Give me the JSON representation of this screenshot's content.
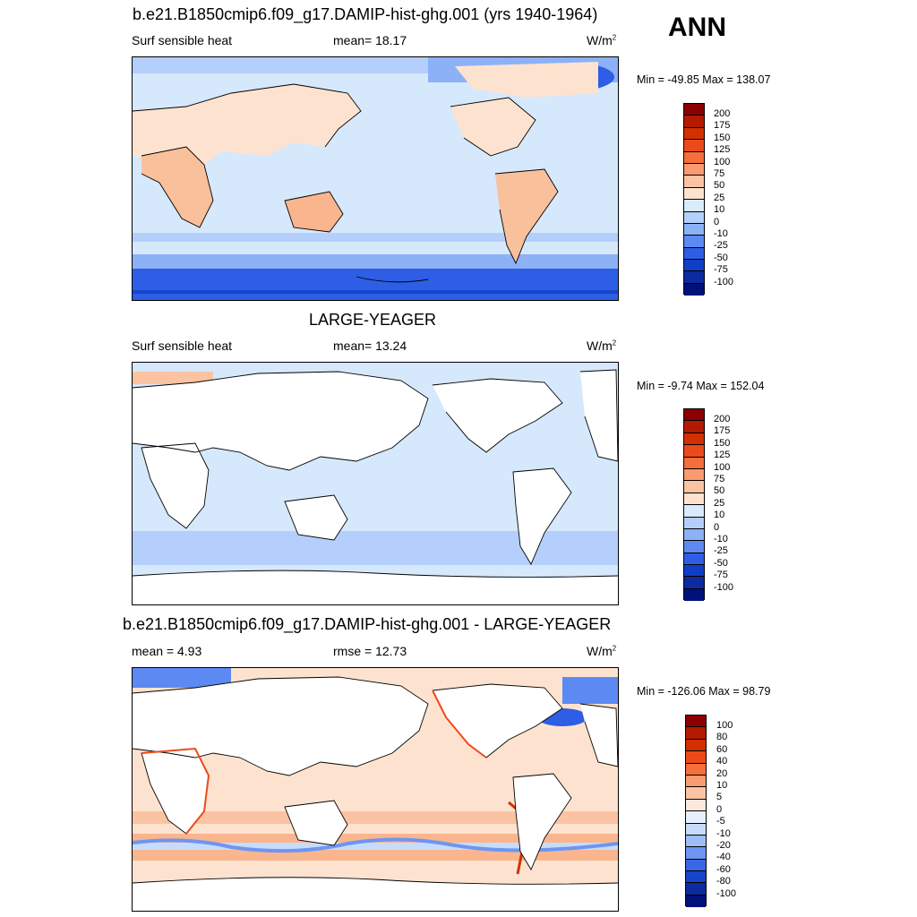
{
  "season": "ANN",
  "panel1": {
    "title": "b.e21.B1850cmip6.f09_g17.DAMIP-hist-ghg.001 (yrs 1940-1964)",
    "variable": "Surf sensible heat",
    "stat": "mean=  18.17",
    "units": "W/m",
    "units_exp": "2",
    "minmax": "Min = -49.85 Max = 138.07",
    "colorbar": {
      "labels": [
        "200",
        "175",
        "150",
        "125",
        "100",
        "75",
        "50",
        "25",
        "10",
        "0",
        "-10",
        "-25",
        "-50",
        "-75",
        "-100"
      ],
      "colors": [
        "#8b0000",
        "#b31a00",
        "#d33000",
        "#ec4a1a",
        "#f56e3c",
        "#f99a70",
        "#fcc3a2",
        "#fde3cf",
        "#d9ebfd",
        "#b4cffb",
        "#8cb1f7",
        "#5d8af2",
        "#2e5ee5",
        "#113ec7",
        "#0d2aa0",
        "#00117a"
      ]
    }
  },
  "panel2": {
    "title": "LARGE-YEAGER",
    "variable": "Surf sensible heat",
    "stat": "mean=  13.24",
    "units": "W/m",
    "units_exp": "2",
    "minmax": "Min =  -9.74 Max = 152.04",
    "colorbar": {
      "labels": [
        "200",
        "175",
        "150",
        "125",
        "100",
        "75",
        "50",
        "25",
        "10",
        "0",
        "-10",
        "-25",
        "-50",
        "-75",
        "-100"
      ],
      "colors": [
        "#8b0000",
        "#b31a00",
        "#d33000",
        "#ec4a1a",
        "#f56e3c",
        "#f99a70",
        "#fcc3a2",
        "#fde3cf",
        "#d9ebfd",
        "#b4cffb",
        "#8cb1f7",
        "#5d8af2",
        "#2e5ee5",
        "#113ec7",
        "#0d2aa0",
        "#00117a"
      ]
    }
  },
  "panel3": {
    "title": "b.e21.B1850cmip6.f09_g17.DAMIP-hist-ghg.001 - LARGE-YEAGER",
    "stat_mean": "mean =   4.93",
    "stat_rmse": "rmse =  12.73",
    "units": "W/m",
    "units_exp": "2",
    "minmax": "Min = -126.06 Max =  98.79",
    "colorbar": {
      "labels": [
        "100",
        "80",
        "60",
        "40",
        "20",
        "10",
        "5",
        "0",
        "-5",
        "-10",
        "-20",
        "-40",
        "-60",
        "-80",
        "-100"
      ],
      "colors": [
        "#8b0000",
        "#b31a00",
        "#d33000",
        "#ec4a1a",
        "#f56e3c",
        "#f99a70",
        "#fcc3a2",
        "#fde9dc",
        "#e6f0fd",
        "#c7dcfb",
        "#9dbdf7",
        "#6e95f2",
        "#3a67e6",
        "#1545c9",
        "#0d2aa0",
        "#00117a"
      ]
    }
  }
}
